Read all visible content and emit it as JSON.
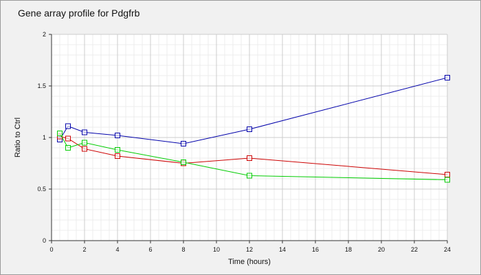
{
  "chart_data": {
    "type": "line",
    "title": "Gene array profile for Pdgfrb",
    "xlabel": "Time (hours)",
    "ylabel": "Ratio to Ctrl",
    "xlim": [
      0,
      24
    ],
    "ylim": [
      0,
      2
    ],
    "xticks": [
      0,
      2,
      4,
      6,
      8,
      10,
      12,
      14,
      16,
      18,
      20,
      22,
      24
    ],
    "yticks": [
      0,
      0.5,
      1,
      1.5,
      2
    ],
    "ytick_labels": [
      "0",
      "0.5",
      "1",
      "1.5",
      "2"
    ],
    "grid": true,
    "series": [
      {
        "color": "#0000aa",
        "x": [
          0.5,
          1,
          2,
          4,
          8,
          12,
          24
        ],
        "y": [
          0.98,
          1.11,
          1.05,
          1.02,
          0.94,
          1.08,
          1.58
        ]
      },
      {
        "color": "#cc0000",
        "x": [
          0.5,
          1,
          2,
          4,
          8,
          12,
          24
        ],
        "y": [
          1.01,
          0.99,
          0.89,
          0.82,
          0.75,
          0.8,
          0.64
        ]
      },
      {
        "color": "#00cc00",
        "x": [
          0.5,
          1,
          2,
          4,
          8,
          12,
          24
        ],
        "y": [
          1.04,
          0.9,
          0.95,
          0.88,
          0.76,
          0.63,
          0.59
        ]
      }
    ]
  }
}
